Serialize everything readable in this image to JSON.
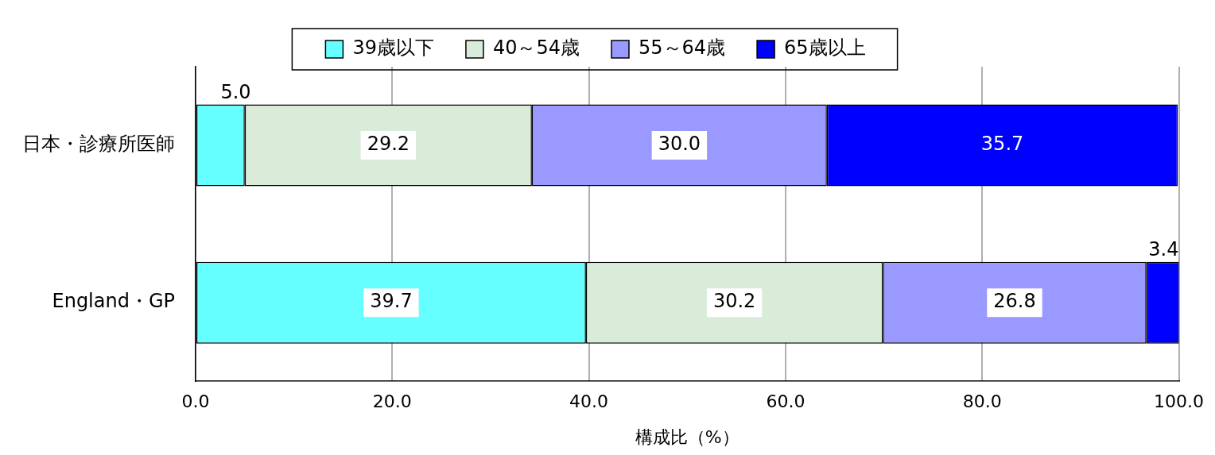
{
  "chart_data": {
    "type": "bar",
    "orientation": "horizontal",
    "stacked": true,
    "categories": [
      "日本・診療所医師",
      "England・GP"
    ],
    "series": [
      {
        "name": "39歳以下",
        "color": "#66ffff",
        "values": [
          5.0,
          39.7
        ],
        "value_labels": [
          "5.0",
          "39.7"
        ]
      },
      {
        "name": "40～54歳",
        "color": "#d9ecd9",
        "values": [
          29.2,
          30.2
        ],
        "value_labels": [
          "29.2",
          "30.2"
        ]
      },
      {
        "name": "55～64歳",
        "color": "#9999ff",
        "values": [
          30.0,
          26.8
        ],
        "value_labels": [
          "30.0",
          "26.8"
        ]
      },
      {
        "name": "65歳以上",
        "color": "#0000ff",
        "values": [
          35.7,
          3.4
        ],
        "value_labels": [
          "35.7",
          "3.4"
        ]
      }
    ],
    "xlabel": "構成比（%）",
    "xlim": [
      0,
      100
    ],
    "xticks": [
      {
        "value": 0,
        "label": "0.0"
      },
      {
        "value": 20,
        "label": "20.0"
      },
      {
        "value": 40,
        "label": "40.0"
      },
      {
        "value": 60,
        "label": "60.0"
      },
      {
        "value": 80,
        "label": "80.0"
      },
      {
        "value": 100,
        "label": "100.0"
      }
    ],
    "grid": "x",
    "legend": "top"
  }
}
